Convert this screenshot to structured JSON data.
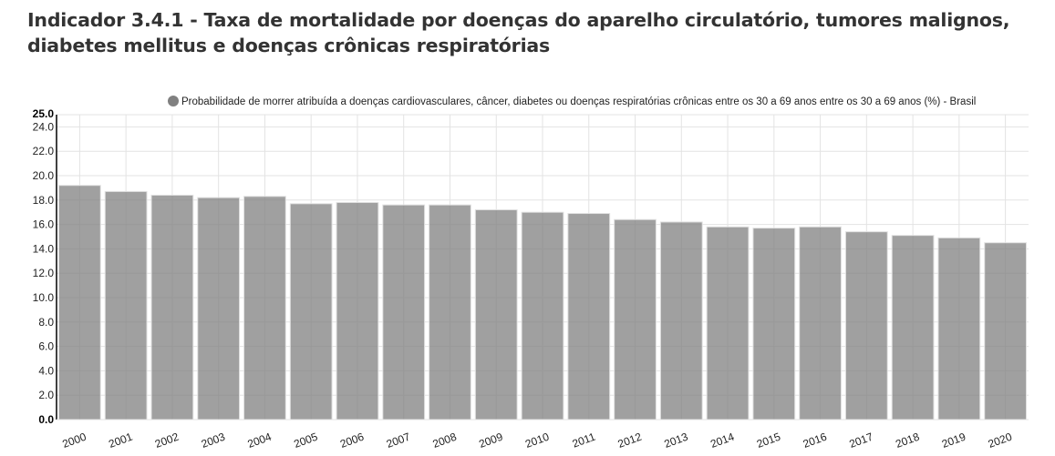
{
  "chart_data": {
    "type": "bar",
    "title": "Indicador 3.4.1 - Taxa de mortalidade por doenças do aparelho circulatório, tumores malignos, diabetes mellitus e doenças crônicas respiratórias",
    "title_lines": [
      "Indicador 3.4.1 - Taxa de mortalidade por doenças do aparelho circulatório, tumores malignos,",
      "diabetes mellitus e doenças crônicas respiratórias"
    ],
    "categories": [
      "2000",
      "2001",
      "2002",
      "2003",
      "2004",
      "2005",
      "2006",
      "2007",
      "2008",
      "2009",
      "2010",
      "2011",
      "2012",
      "2013",
      "2014",
      "2015",
      "2016",
      "2017",
      "2018",
      "2019",
      "2020"
    ],
    "series": [
      {
        "name": "Probabilidade de morrer atribuída a doenças cardiovasculares, câncer, diabetes ou doenças respiratórias crônicas entre os 30 a 69 anos entre os 30 a 69 anos (%) - Brasil",
        "color": "#9e9e9e",
        "values": [
          19.2,
          18.7,
          18.4,
          18.2,
          18.3,
          17.7,
          17.8,
          17.6,
          17.6,
          17.2,
          17.0,
          16.9,
          16.4,
          16.2,
          15.8,
          15.7,
          15.8,
          15.4,
          15.1,
          14.9,
          14.5
        ]
      }
    ],
    "ylim": [
      0,
      25
    ],
    "yticks": [
      "0.0",
      "2.0",
      "4.0",
      "6.0",
      "8.0",
      "10.0",
      "12.0",
      "14.0",
      "16.0",
      "18.0",
      "20.0",
      "22.0",
      "24.0",
      "25.0"
    ],
    "xlabel": "",
    "ylabel": "",
    "grid": true,
    "legend_position": "top-right"
  }
}
